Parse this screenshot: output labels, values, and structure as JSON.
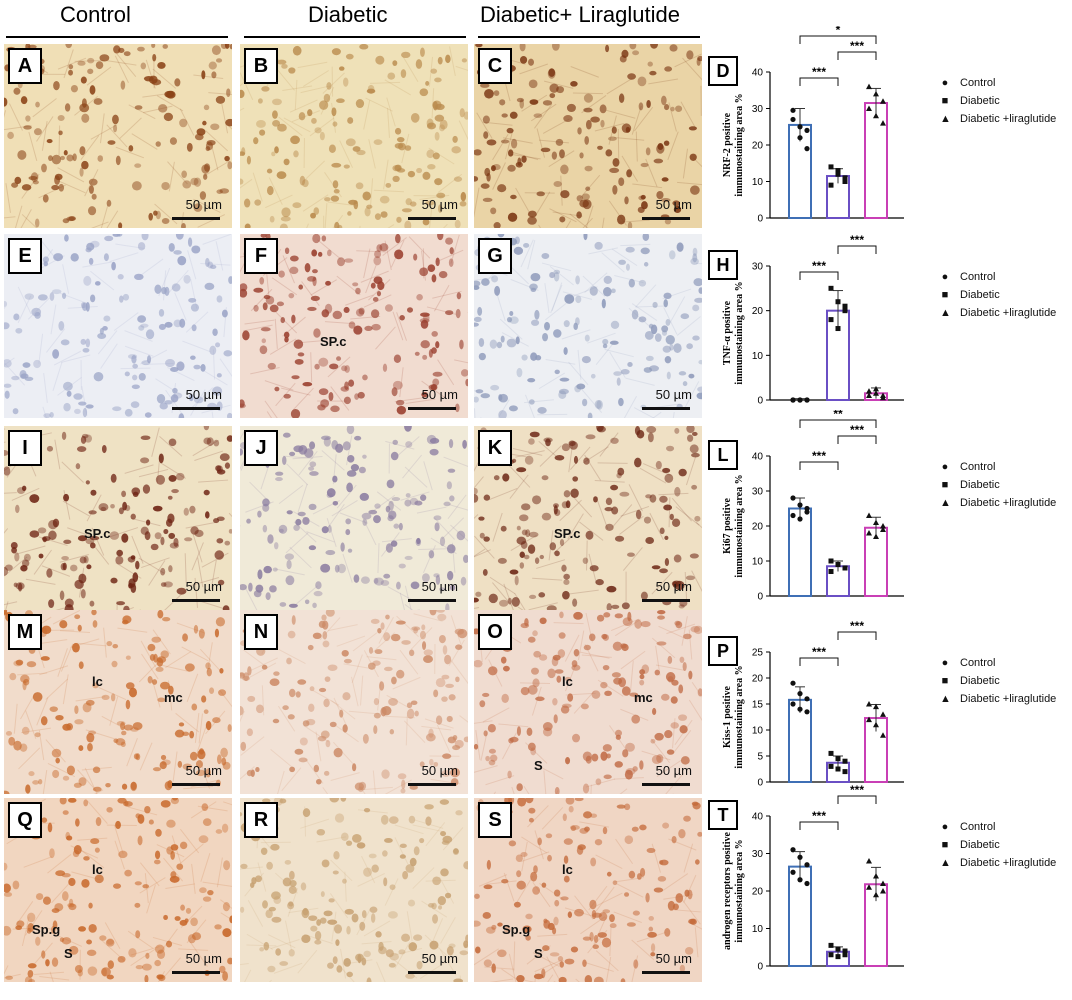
{
  "columns": [
    "Control",
    "Diabetic",
    "Diabetic+ Liraglutide"
  ],
  "scale_label": "50 µm",
  "micro_panels": [
    {
      "label": "A",
      "base": "#f0dfb6",
      "cell": "#8a4216",
      "annotations": []
    },
    {
      "label": "B",
      "base": "#efe1b8",
      "cell": "#b98a4c",
      "annotations": []
    },
    {
      "label": "C",
      "base": "#ead4a6",
      "cell": "#7a3512",
      "annotations": []
    },
    {
      "label": "E",
      "base": "#eceef4",
      "cell": "#9aa3c6",
      "annotations": []
    },
    {
      "label": "F",
      "base": "#f1dcd0",
      "cell": "#9a3f2e",
      "annotations": [
        "SP.c"
      ]
    },
    {
      "label": "G",
      "base": "#edeff3",
      "cell": "#8e9aba",
      "annotations": []
    },
    {
      "label": "I",
      "base": "#efe2c4",
      "cell": "#6e2414",
      "annotations": [
        "SP.c"
      ]
    },
    {
      "label": "J",
      "base": "#f0ead8",
      "cell": "#8a7ca0",
      "annotations": []
    },
    {
      "label": "K",
      "base": "#efe0c4",
      "cell": "#6c2614",
      "annotations": [
        "SP.c"
      ]
    },
    {
      "label": "M",
      "base": "#f1dccb",
      "cell": "#c86a2c",
      "annotations": [
        "lc",
        "mc"
      ]
    },
    {
      "label": "N",
      "base": "#f2e2d6",
      "cell": "#cc8a66",
      "annotations": []
    },
    {
      "label": "O",
      "base": "#f0dcd0",
      "cell": "#c06a44",
      "annotations": [
        "lc",
        "mc",
        "S"
      ]
    },
    {
      "label": "Q",
      "base": "#f1d6c0",
      "cell": "#c8682a",
      "annotations": [
        "S",
        "lc",
        "Sp.g"
      ]
    },
    {
      "label": "R",
      "base": "#f0e2cc",
      "cell": "#c6a070",
      "annotations": []
    },
    {
      "label": "S",
      "base": "#f0d6c4",
      "cell": "#c46a3a",
      "annotations": [
        "S",
        "Sp.g",
        "lc"
      ]
    }
  ],
  "legend": {
    "items_D": [
      "Control",
      "Diabetic",
      "Diabetic +liraglutide"
    ],
    "items": [
      "Control",
      "Diabetic",
      "Diabetic +liraglutide"
    ],
    "symbols": [
      "●",
      "■",
      "▲"
    ]
  },
  "colors": {
    "control": "#3f6fb5",
    "diabetic": "#6a4fc4",
    "lira": "#c93fb5"
  },
  "chart_data": [
    {
      "label": "D",
      "type": "bar",
      "categories": [
        "Control",
        "Diabetic",
        "Diabetic +liraglutide"
      ],
      "values": [
        25.5,
        11.5,
        31.5
      ],
      "errors": [
        4.5,
        2,
        4
      ],
      "points": [
        [
          29.5,
          25,
          24,
          27,
          22,
          19
        ],
        [
          14,
          13,
          11,
          9,
          12,
          10
        ],
        [
          36,
          34,
          32,
          30,
          28,
          26
        ]
      ],
      "ylabel": "NRF-2 positive immunostaining area %",
      "yticks": [
        "0",
        "10",
        "20",
        "30",
        "40"
      ],
      "ylim": [
        0,
        40
      ],
      "sig": [
        {
          "from": 0,
          "to": 1,
          "text": "***",
          "level": 0
        },
        {
          "from": 1,
          "to": 2,
          "text": "***",
          "level": 1
        },
        {
          "from": 0,
          "to": 2,
          "text": "*",
          "level": 2
        }
      ]
    },
    {
      "label": "H",
      "type": "bar",
      "categories": [
        "Control",
        "Diabetic",
        "Diabetic +liraglutide"
      ],
      "values": [
        0,
        20,
        1.5
      ],
      "errors": [
        0.3,
        4.5,
        1.2
      ],
      "points": [
        [
          0,
          0,
          0,
          0,
          0,
          0
        ],
        [
          25,
          22,
          20,
          18,
          16,
          21
        ],
        [
          2,
          1.5,
          1,
          1,
          2.5,
          0.5
        ]
      ],
      "ylabel": "TNF-α positive immunostaining area %",
      "yticks": [
        "0",
        "10",
        "20",
        "30"
      ],
      "ylim": [
        0,
        30
      ],
      "dotted_zero": true,
      "sig": [
        {
          "from": 0,
          "to": 1,
          "text": "***",
          "level": 0
        },
        {
          "from": 1,
          "to": 2,
          "text": "***",
          "level": 1
        }
      ]
    },
    {
      "label": "L",
      "type": "bar",
      "categories": [
        "Control",
        "Diabetic",
        "Diabetic +liraglutide"
      ],
      "values": [
        25,
        8.5,
        19.5
      ],
      "errors": [
        3,
        1.5,
        3
      ],
      "points": [
        [
          28,
          26,
          25,
          23,
          22,
          24
        ],
        [
          10,
          9,
          8,
          7,
          9,
          8
        ],
        [
          23,
          21,
          19,
          18,
          17,
          20
        ]
      ],
      "ylabel": "Ki67 positive immunostaining area %",
      "yticks": [
        "0",
        "10",
        "20",
        "30",
        "40"
      ],
      "ylim": [
        0,
        40
      ],
      "sig": [
        {
          "from": 0,
          "to": 1,
          "text": "***",
          "level": 0
        },
        {
          "from": 1,
          "to": 2,
          "text": "***",
          "level": 1
        },
        {
          "from": 0,
          "to": 2,
          "text": "**",
          "level": 2
        }
      ]
    },
    {
      "label": "P",
      "type": "bar",
      "categories": [
        "Control",
        "Diabetic",
        "Diabetic +liraglutide"
      ],
      "values": [
        15.8,
        3.7,
        12.3
      ],
      "errors": [
        2.5,
        1.3,
        2.6
      ],
      "points": [
        [
          19,
          17,
          16,
          15,
          14,
          13.5
        ],
        [
          5.5,
          4.5,
          4,
          3,
          2.5,
          2
        ],
        [
          15,
          14.5,
          13,
          12,
          11,
          9
        ]
      ],
      "ylabel": "Kiss-1 positive immunostaining area %",
      "yticks": [
        "0",
        "5",
        "10",
        "15",
        "20",
        "25"
      ],
      "ylim": [
        0,
        25
      ],
      "sig": [
        {
          "from": 0,
          "to": 1,
          "text": "***",
          "level": 0
        },
        {
          "from": 1,
          "to": 2,
          "text": "***",
          "level": 1
        }
      ]
    },
    {
      "label": "T",
      "type": "bar",
      "categories": [
        "Control",
        "Diabetic",
        "Diabetic +liraglutide"
      ],
      "values": [
        26.5,
        3.8,
        21.8
      ],
      "errors": [
        4,
        1.3,
        4.5
      ],
      "points": [
        [
          31,
          29,
          27,
          25,
          23,
          22
        ],
        [
          5.5,
          4.5,
          4,
          3,
          2.5,
          3
        ],
        [
          28,
          24,
          22,
          21,
          19,
          20
        ]
      ],
      "ylabel": "androgen receptors positive immunostaining area %",
      "yticks": [
        "0",
        "10",
        "20",
        "30",
        "40"
      ],
      "ylim": [
        0,
        40
      ],
      "sig": [
        {
          "from": 0,
          "to": 1,
          "text": "***",
          "level": 0
        },
        {
          "from": 1,
          "to": 2,
          "text": "***",
          "level": 1
        }
      ]
    }
  ]
}
